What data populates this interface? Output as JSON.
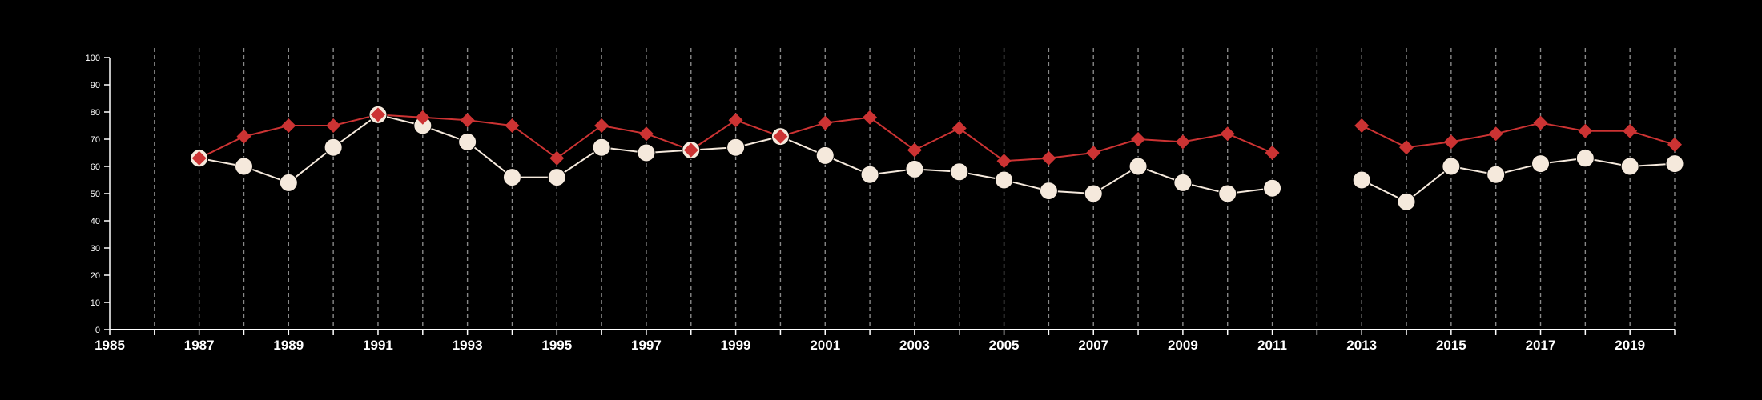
{
  "chart_data": {
    "type": "line",
    "title": "",
    "xlabel": "",
    "ylabel": "",
    "xlim": [
      1985,
      2020
    ],
    "ylim": [
      0,
      100
    ],
    "x_ticks": [
      1985,
      1987,
      1989,
      1991,
      1993,
      1995,
      1997,
      1999,
      2001,
      2003,
      2005,
      2007,
      2009,
      2011,
      2013,
      2015,
      2017,
      2019
    ],
    "y_ticks": [
      0,
      10,
      20,
      30,
      40,
      50,
      60,
      70,
      80,
      90,
      100
    ],
    "grid": "vertical dashed lines at each year",
    "legend": "none",
    "series": [
      {
        "marker": "diamond",
        "color": "#cc3333",
        "x": [
          1987,
          1988,
          1989,
          1990,
          1991,
          1992,
          1993,
          1994,
          1995,
          1996,
          1997,
          1998,
          1999,
          2000,
          2001,
          2002,
          2003,
          2004,
          2005,
          2006,
          2007,
          2008,
          2009,
          2010,
          2011,
          2012,
          2013,
          2014,
          2015,
          2016,
          2017,
          2018,
          2019,
          2020
        ],
        "values": [
          63,
          71,
          75,
          75,
          79,
          78,
          77,
          75,
          63,
          75,
          72,
          66,
          77,
          71,
          76,
          78,
          66,
          74,
          62,
          63,
          65,
          70,
          69,
          72,
          65,
          null,
          75,
          67,
          69,
          72,
          76,
          73,
          73,
          68
        ]
      },
      {
        "marker": "circle",
        "color": "#f5e9dc",
        "x": [
          1987,
          1988,
          1989,
          1990,
          1991,
          1992,
          1993,
          1994,
          1995,
          1996,
          1997,
          1998,
          1999,
          2000,
          2001,
          2002,
          2003,
          2004,
          2005,
          2006,
          2007,
          2008,
          2009,
          2010,
          2011,
          2012,
          2013,
          2014,
          2015,
          2016,
          2017,
          2018,
          2019,
          2020
        ],
        "values": [
          63,
          60,
          54,
          67,
          79,
          75,
          69,
          56,
          56,
          67,
          65,
          66,
          67,
          71,
          64,
          57,
          59,
          58,
          55,
          51,
          50,
          60,
          54,
          50,
          52,
          null,
          55,
          47,
          60,
          57,
          61,
          63,
          60,
          61
        ]
      }
    ],
    "colors": {
      "background": "#000000",
      "axis": "#ffffff",
      "grid": "#888888"
    }
  }
}
